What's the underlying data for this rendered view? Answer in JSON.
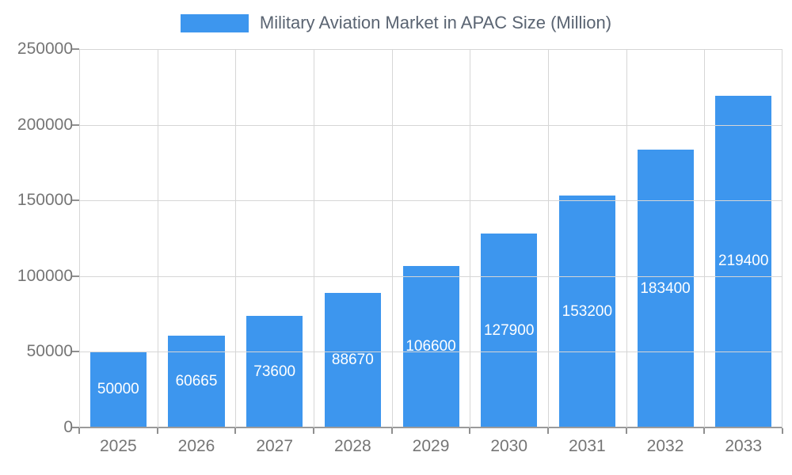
{
  "chart_data": {
    "type": "bar",
    "title": "Military Aviation Market in APAC Size (Million)",
    "categories": [
      "2025",
      "2026",
      "2027",
      "2028",
      "2029",
      "2030",
      "2031",
      "2032",
      "2033"
    ],
    "values": [
      50000,
      60665,
      73600,
      88670,
      106600,
      127900,
      153200,
      183400,
      219400
    ],
    "value_labels": [
      "50000",
      "60665",
      "73600",
      "88670",
      "106600",
      "127900",
      "153200",
      "183400",
      "219400"
    ],
    "xlabel": "",
    "ylabel": "",
    "ylim": [
      0,
      250000
    ],
    "yticks": [
      0,
      50000,
      100000,
      150000,
      200000,
      250000
    ],
    "ytick_labels": [
      "0",
      "50000",
      "100000",
      "150000",
      "200000",
      "250000"
    ],
    "bar_color": "#3D96EE",
    "value_label_color": "#ffffff",
    "grid": true,
    "legend_position": "top"
  }
}
